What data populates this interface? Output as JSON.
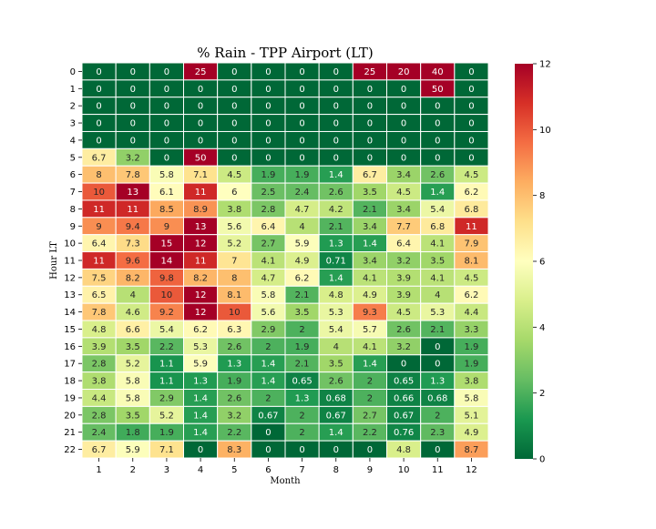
{
  "chart_data": {
    "type": "heatmap",
    "title": "% Rain - TPP Airport (LT)",
    "xlabel": "Month",
    "ylabel": "Hour LT",
    "x_categories": [
      "1",
      "2",
      "3",
      "4",
      "5",
      "6",
      "7",
      "8",
      "9",
      "10",
      "11",
      "12"
    ],
    "y_categories": [
      "0",
      "1",
      "2",
      "3",
      "4",
      "5",
      "6",
      "7",
      "8",
      "9",
      "10",
      "11",
      "12",
      "13",
      "14",
      "15",
      "16",
      "17",
      "18",
      "19",
      "20",
      "21",
      "22"
    ],
    "values": [
      [
        0,
        0,
        0,
        25,
        0,
        0,
        0,
        0,
        25,
        20,
        40,
        0
      ],
      [
        0,
        0,
        0,
        0,
        0,
        0,
        0,
        0,
        0,
        0,
        50,
        0
      ],
      [
        0,
        0,
        0,
        0,
        0,
        0,
        0,
        0,
        0,
        0,
        0,
        0
      ],
      [
        0,
        0,
        0,
        0,
        0,
        0,
        0,
        0,
        0,
        0,
        0,
        0
      ],
      [
        0,
        0,
        0,
        0,
        0,
        0,
        0,
        0,
        0,
        0,
        0,
        0
      ],
      [
        6.7,
        3.2,
        0,
        50,
        0,
        0,
        0,
        0,
        0,
        0,
        0,
        0
      ],
      [
        8,
        7.8,
        5.8,
        7.1,
        4.5,
        1.9,
        1.9,
        1.4,
        6.7,
        3.4,
        2.6,
        4.5
      ],
      [
        10,
        13,
        6.1,
        11,
        6,
        2.5,
        2.4,
        2.6,
        3.5,
        4.5,
        1.4,
        6.2
      ],
      [
        11,
        11,
        8.5,
        8.9,
        3.8,
        2.8,
        4.7,
        4.2,
        2.1,
        3.4,
        5.4,
        6.8
      ],
      [
        9,
        9.4,
        9,
        13,
        5.6,
        6.4,
        4,
        2.1,
        3.4,
        7.7,
        6.8,
        11
      ],
      [
        6.4,
        7.3,
        15,
        12,
        5.2,
        2.7,
        5.9,
        1.3,
        1.4,
        6.4,
        4.1,
        7.9
      ],
      [
        11,
        9.6,
        14,
        11,
        7,
        4.1,
        4.9,
        0.71,
        3.4,
        3.2,
        3.5,
        8.1
      ],
      [
        7.5,
        8.2,
        9.8,
        8.2,
        8,
        4.7,
        6.2,
        1.4,
        4.1,
        3.9,
        4.1,
        4.5
      ],
      [
        6.5,
        4,
        10,
        12,
        8.1,
        5.8,
        2.1,
        4.8,
        4.9,
        3.9,
        4,
        6.2
      ],
      [
        7.8,
        4.6,
        9.2,
        12,
        10,
        5.6,
        3.5,
        5.3,
        9.3,
        4.5,
        5.3,
        4.4
      ],
      [
        4.8,
        6.6,
        5.4,
        6.2,
        6.3,
        2.9,
        2,
        5.4,
        5.7,
        2.6,
        2.1,
        3.3
      ],
      [
        3.9,
        3.5,
        2.2,
        5.3,
        2.6,
        2,
        1.9,
        4,
        4.1,
        3.2,
        0,
        1.9
      ],
      [
        2.8,
        5.2,
        1.1,
        5.9,
        1.3,
        1.4,
        2.1,
        3.5,
        1.4,
        0,
        0,
        1.9
      ],
      [
        3.8,
        5.8,
        1.1,
        1.3,
        1.9,
        1.4,
        0.65,
        2.6,
        2,
        0.65,
        1.3,
        3.8
      ],
      [
        4.4,
        5.8,
        2.9,
        1.4,
        2.6,
        2,
        1.3,
        0.68,
        2,
        0.66,
        0.68,
        5.8
      ],
      [
        2.8,
        3.5,
        5.2,
        1.4,
        3.2,
        0.67,
        2,
        0.67,
        2.7,
        0.67,
        2,
        5.1
      ],
      [
        2.4,
        1.8,
        1.9,
        1.4,
        2.2,
        0,
        2,
        1.4,
        2.2,
        0.76,
        2.3,
        4.9
      ],
      [
        6.7,
        5.9,
        7.1,
        0,
        8.3,
        0,
        0,
        0,
        0,
        4.8,
        0,
        8.7
      ]
    ],
    "colorbar": {
      "colormap": "RdYlGn_r",
      "vmin": 0,
      "vmax": 12,
      "ticks": [
        0,
        2,
        4,
        6,
        8,
        10,
        12
      ]
    },
    "grid": true,
    "annotations": "cell values"
  }
}
